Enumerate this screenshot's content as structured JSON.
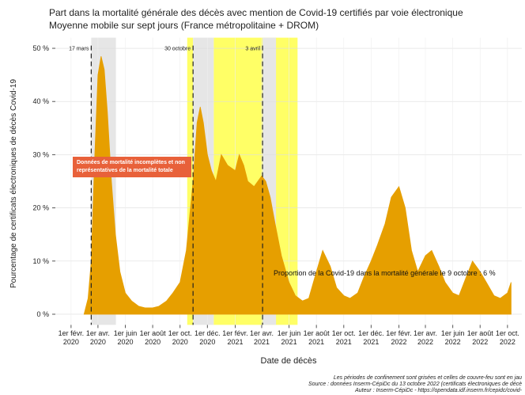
{
  "chart_data": {
    "type": "area",
    "title": "Part dans la mortalité générale des décès avec mention de Covid-19 certifiés par voie électronique",
    "subtitle": "Moyenne mobile sur sept jours (France métropolitaine + DROM)",
    "x_label": "Date de décès",
    "y_label": "Pourcentage de certificats électroniques de décès Covid-19",
    "x": [
      "2020-03-01",
      "2020-03-10",
      "2020-03-17",
      "2020-03-25",
      "2020-04-01",
      "2020-04-08",
      "2020-04-15",
      "2020-04-22",
      "2020-05-01",
      "2020-05-10",
      "2020-05-20",
      "2020-06-01",
      "2020-06-15",
      "2020-07-01",
      "2020-07-15",
      "2020-08-01",
      "2020-08-15",
      "2020-09-01",
      "2020-09-15",
      "2020-10-01",
      "2020-10-15",
      "2020-10-30",
      "2020-11-08",
      "2020-11-15",
      "2020-11-22",
      "2020-12-01",
      "2020-12-10",
      "2020-12-20",
      "2021-01-01",
      "2021-01-15",
      "2021-02-01",
      "2021-02-10",
      "2021-02-20",
      "2021-03-01",
      "2021-03-15",
      "2021-04-01",
      "2021-04-10",
      "2021-04-20",
      "2021-05-01",
      "2021-05-15",
      "2021-06-01",
      "2021-06-15",
      "2021-07-01",
      "2021-07-15",
      "2021-08-01",
      "2021-08-15",
      "2021-09-01",
      "2021-09-15",
      "2021-10-01",
      "2021-10-15",
      "2021-11-01",
      "2021-11-15",
      "2021-12-01",
      "2021-12-15",
      "2022-01-01",
      "2022-01-15",
      "2022-02-01",
      "2022-02-15",
      "2022-03-01",
      "2022-03-15",
      "2022-04-01",
      "2022-04-15",
      "2022-05-01",
      "2022-05-15",
      "2022-06-01",
      "2022-06-15",
      "2022-07-01",
      "2022-07-15",
      "2022-08-01",
      "2022-08-15",
      "2022-09-01",
      "2022-09-15",
      "2022-10-01",
      "2022-10-09"
    ],
    "series": [
      {
        "color": "#e69f00",
        "values": [
          0,
          3,
          10,
          30,
          45,
          48.5,
          46,
          38,
          25,
          15,
          8,
          4,
          2.5,
          1.5,
          1.2,
          1.2,
          1.5,
          2.5,
          4,
          6,
          12,
          25,
          36,
          39,
          36,
          30,
          27,
          25,
          30,
          28,
          27,
          30,
          28,
          25,
          24,
          26,
          25,
          22,
          17,
          11,
          6,
          3.5,
          2.5,
          3,
          8,
          12,
          9,
          5,
          3.5,
          3,
          4,
          7,
          10,
          13,
          17,
          22,
          24,
          20,
          12,
          8,
          11,
          12,
          9,
          6,
          4,
          3.5,
          7,
          10,
          8,
          6,
          3.5,
          3,
          4,
          6
        ]
      }
    ],
    "xlim": [
      "2019-12-28",
      "2022-11-02"
    ],
    "xticks": [
      {
        "value": "2020-02-01",
        "label": "1er févr. 2020"
      },
      {
        "value": "2020-04-01",
        "label": "1er avr. 2020"
      },
      {
        "value": "2020-06-01",
        "label": "1er juin 2020"
      },
      {
        "value": "2020-08-01",
        "label": "1er août 2020"
      },
      {
        "value": "2020-10-01",
        "label": "1er oct. 2020"
      },
      {
        "value": "2020-12-01",
        "label": "1er déc. 2020"
      },
      {
        "value": "2021-02-01",
        "label": "1er févr. 2021"
      },
      {
        "value": "2021-04-01",
        "label": "1er avr. 2021"
      },
      {
        "value": "2021-06-01",
        "label": "1er juin 2021"
      },
      {
        "value": "2021-08-01",
        "label": "1er août 2021"
      },
      {
        "value": "2021-10-01",
        "label": "1er oct. 2021"
      },
      {
        "value": "2021-12-01",
        "label": "1er déc. 2021"
      },
      {
        "value": "2022-02-01",
        "label": "1er févr. 2022"
      },
      {
        "value": "2022-04-01",
        "label": "1er avr. 2022"
      },
      {
        "value": "2022-06-01",
        "label": "1er juin 2022"
      },
      {
        "value": "2022-08-01",
        "label": "1er août 2022"
      },
      {
        "value": "2022-10-01",
        "label": "1er oct. 2022"
      }
    ],
    "ylim": [
      -2,
      52
    ],
    "yticks": [
      {
        "value": 0,
        "label": "0 %"
      },
      {
        "value": 10,
        "label": "10 %"
      },
      {
        "value": 20,
        "label": "20 %"
      },
      {
        "value": 30,
        "label": "30 %"
      },
      {
        "value": 40,
        "label": "40 %"
      },
      {
        "value": 50,
        "label": "50 %"
      }
    ],
    "grid": true,
    "periods": [
      {
        "start": "2020-10-17",
        "end": "2020-10-30",
        "color": "#ffff66"
      },
      {
        "start": "2020-12-15",
        "end": "2021-06-20",
        "color": "#ffff66"
      },
      {
        "start": "2020-03-17",
        "end": "2020-05-11",
        "color": "#e6e6e6"
      },
      {
        "start": "2020-10-30",
        "end": "2020-12-15",
        "color": "#e6e6e6"
      },
      {
        "start": "2021-04-03",
        "end": "2021-05-03",
        "color": "#e6e6e6"
      }
    ],
    "events": [
      {
        "x": "2020-03-17",
        "label": "17 mars"
      },
      {
        "x": "2020-10-30",
        "label": "30 octobre"
      },
      {
        "x": "2021-04-03",
        "label": "3 avril"
      }
    ],
    "box_annotation": "Données de mortalité incomplètes et non représentatives de la mortalité totale",
    "annotation": "Proportion de la Covid-19 dans la mortalité générale le 9 octobre : 6 %",
    "notes": [
      "Les périodes de confinement sont grisées et celles de couvre-feu sont en jau",
      "Source : données Inserm-CépiDc du 13 octobre 2022 (certificats électroniques de décè",
      "Auteur : Inserm-CépiDc - https://opendata.idf.inserm.fr/cepidc/covid-"
    ]
  }
}
